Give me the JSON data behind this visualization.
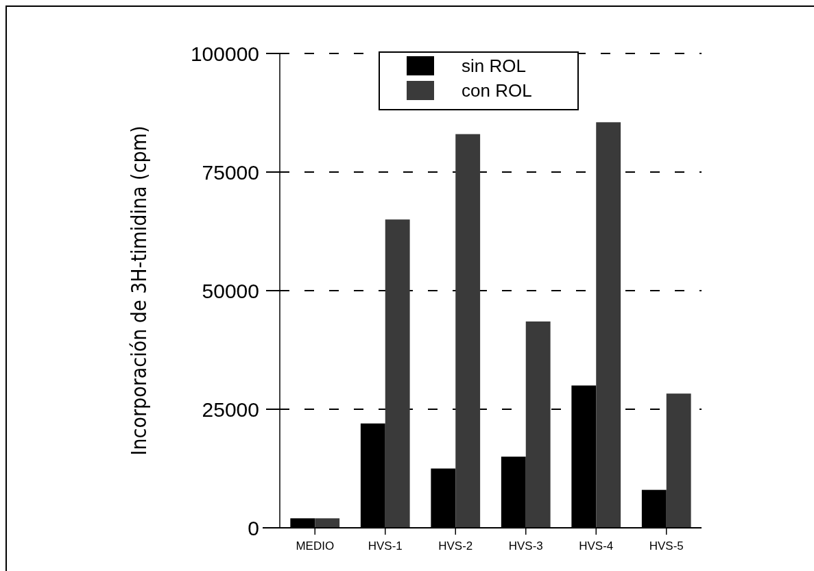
{
  "chart_data": {
    "type": "bar",
    "ylabel": "Incorporación de 3H-timidina (cpm)",
    "categories": [
      "MEDIO",
      "HVS-1",
      "HVS-2",
      "HVS-3",
      "HVS-4",
      "HVS-5"
    ],
    "series": [
      {
        "name": "sin ROL",
        "color": "#000000",
        "values": [
          2000,
          22000,
          12500,
          15000,
          30000,
          8000
        ]
      },
      {
        "name": "con ROL",
        "color": "#3a3a3a",
        "values": [
          2000,
          65000,
          83000,
          43500,
          85500,
          28300
        ]
      }
    ],
    "ylim": [
      0,
      100000
    ],
    "yticks": [
      0,
      25000,
      50000,
      75000,
      100000
    ],
    "grid": "y",
    "legend": "top"
  }
}
